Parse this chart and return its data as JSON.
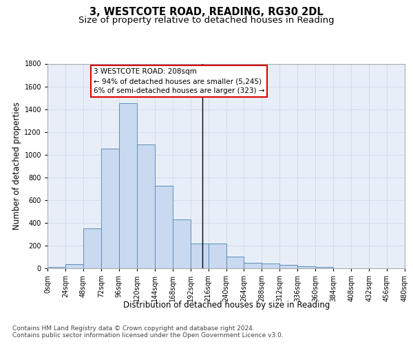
{
  "title": "3, WESTCOTE ROAD, READING, RG30 2DL",
  "subtitle": "Size of property relative to detached houses in Reading",
  "xlabel": "Distribution of detached houses by size in Reading",
  "ylabel": "Number of detached properties",
  "footer_line1": "Contains HM Land Registry data © Crown copyright and database right 2024.",
  "footer_line2": "Contains public sector information licensed under the Open Government Licence v3.0.",
  "bin_edges": [
    0,
    24,
    48,
    72,
    96,
    120,
    144,
    168,
    192,
    216,
    240,
    264,
    288,
    312,
    336,
    360,
    384,
    408,
    432,
    456,
    480
  ],
  "bar_heights": [
    10,
    35,
    350,
    1050,
    1450,
    1090,
    725,
    430,
    215,
    215,
    100,
    50,
    45,
    30,
    20,
    10,
    2,
    2,
    1,
    1
  ],
  "bar_color": "#c9d9f0",
  "bar_edge_color": "#5b8db8",
  "property_line_x": 208,
  "property_line_color": "#000000",
  "annotation_line1": "3 WESTCOTE ROAD: 208sqm",
  "annotation_line2": "← 94% of detached houses are smaller (5,245)",
  "annotation_line3": "6% of semi-detached houses are larger (323) →",
  "annotation_box_color": "#dd0000",
  "annotation_fill_color": "#ffffff",
  "ylim": [
    0,
    1800
  ],
  "xlim": [
    0,
    480
  ],
  "tick_labels": [
    "0sqm",
    "24sqm",
    "48sqm",
    "72sqm",
    "96sqm",
    "120sqm",
    "144sqm",
    "168sqm",
    "192sqm",
    "216sqm",
    "240sqm",
    "264sqm",
    "288sqm",
    "312sqm",
    "336sqm",
    "360sqm",
    "384sqm",
    "408sqm",
    "432sqm",
    "456sqm",
    "480sqm"
  ],
  "grid_color": "#d0d8e8",
  "bg_color": "#e8eef8",
  "title_fontsize": 10.5,
  "subtitle_fontsize": 9.5,
  "axis_label_fontsize": 8.5,
  "tick_fontsize": 7,
  "annotation_fontsize": 7.5,
  "footer_fontsize": 6.5,
  "yticks": [
    0,
    200,
    400,
    600,
    800,
    1000,
    1200,
    1400,
    1600,
    1800
  ]
}
